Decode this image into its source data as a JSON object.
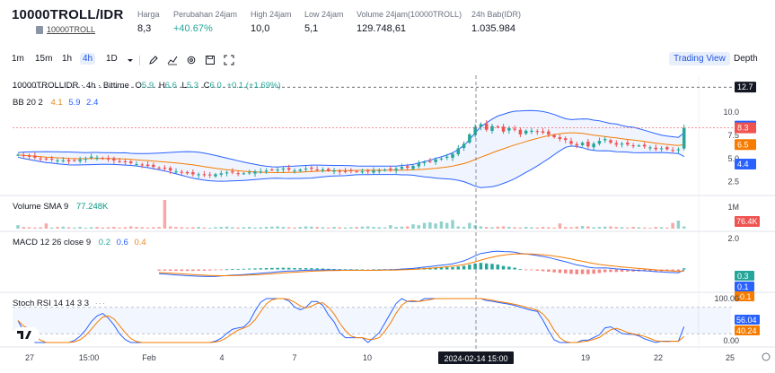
{
  "header": {
    "pair": "10000TROLL/IDR",
    "link": "10000TROLL",
    "stats": [
      {
        "label": "Harga",
        "value": "8,3",
        "trend": "neutral"
      },
      {
        "label": "Perubahan 24jam",
        "value": "+40.67%",
        "trend": "up"
      },
      {
        "label": "High 24jam",
        "value": "10,0",
        "trend": "neutral"
      },
      {
        "label": "Low 24jam",
        "value": "5,1",
        "trend": "neutral"
      },
      {
        "label": "Volume 24jam(10000TROLL)",
        "value": "129.748,61",
        "trend": "neutral"
      },
      {
        "label": "24h Bab(IDR)",
        "value": "1.035.984",
        "trend": "neutral"
      }
    ]
  },
  "toolbar": {
    "timeframes": [
      "1m",
      "15m",
      "1h",
      "4h",
      "1D"
    ],
    "active_timeframe": "4h",
    "icons": [
      "chevron-down-icon",
      "draw-icon",
      "indicator-icon",
      "settings-icon",
      "save-icon",
      "fullscreen-icon"
    ],
    "views": [
      "Trading View",
      "Depth"
    ],
    "active_view": "Trading View"
  },
  "legend": {
    "symbol": "10000TROLLIDR · 4h · Bittime",
    "o_label": "O",
    "o_value": "5.9",
    "h_label": "H",
    "h_value": "6.6",
    "l_label": "L",
    "l_value": "5.3",
    "c_label": "C",
    "c_value": "6.0",
    "change": "+0.1 (+1.69%)",
    "bb_name": "BB 20 2",
    "bb_v1": "4.1",
    "bb_v2": "5.9",
    "bb_v3": "2.4",
    "vol_name": "Volume SMA 9",
    "vol_value": "77.248K",
    "macd_name": "MACD 12 26 close 9",
    "macd_v1": "0.2",
    "macd_v2": "0.6",
    "macd_v3": "0.4",
    "stoch_name": "Stoch RSI 14 14 3 3"
  },
  "price_axis": {
    "ticks": [
      "10.0",
      "7.5",
      "5.0",
      "2.5"
    ],
    "badges": [
      {
        "label": "12.7",
        "color": "#131722"
      },
      {
        "label": "8.5",
        "color": "#2962ff"
      },
      {
        "label": "8.3",
        "color": "#ef5350"
      },
      {
        "label": "6.5",
        "color": "#f57c00"
      },
      {
        "label": "4.4",
        "color": "#2962ff"
      }
    ]
  },
  "volume_axis": {
    "ticks": [
      "1M"
    ],
    "badge": "76.4K"
  },
  "macd_axis": {
    "ticks": [
      "2.0"
    ],
    "badges": [
      {
        "label": "0.3",
        "color": "#26a69a"
      },
      {
        "label": "0.1",
        "color": "#2962ff"
      },
      {
        "label": "-0.1",
        "color": "#f57c00"
      }
    ]
  },
  "stoch_axis": {
    "ticks": [
      "100.00",
      "0.00"
    ],
    "badges": [
      {
        "label": "56.04",
        "color": "#2962ff"
      },
      {
        "label": "40.24",
        "color": "#f57c00"
      }
    ]
  },
  "time_axis": {
    "ticks": [
      "27",
      "15:00",
      "Feb",
      "4",
      "7",
      "10",
      "19",
      "22",
      "25"
    ],
    "crosshair_label": "2024-02-14  15:00"
  },
  "colors": {
    "up": "#26a69a",
    "down": "#ef5350",
    "bb_basis": "#f57c00",
    "bb_band": "#2962ff",
    "macd": "#2962ff",
    "signal": "#f57c00",
    "stoch_k": "#2962ff",
    "stoch_d": "#f57c00"
  },
  "chart_data": {
    "type": "candlestick",
    "title": "10000TROLLIDR · 4h · Bittime",
    "ylim": [
      1.5,
      13.2
    ],
    "closes": [
      5.4,
      5.3,
      5.2,
      5.1,
      5.0,
      4.9,
      4.9,
      4.8,
      4.8,
      4.7,
      4.8,
      4.9,
      5.0,
      5.2,
      5.1,
      5.0,
      4.9,
      4.8,
      4.7,
      4.6,
      4.5,
      4.4,
      4.3,
      4.2,
      4.1,
      4.0,
      3.9,
      3.7,
      3.6,
      3.5,
      3.4,
      3.3,
      3.3,
      3.2,
      3.2,
      3.3,
      3.4,
      3.5,
      3.5,
      3.4,
      3.4,
      3.5,
      3.6,
      3.6,
      3.7,
      3.8,
      3.8,
      3.9,
      3.8,
      3.7,
      3.8,
      3.9,
      3.9,
      3.8,
      3.8,
      3.7,
      3.7,
      3.6,
      3.6,
      3.7,
      3.6,
      3.6,
      3.6,
      3.7,
      3.7,
      3.8,
      3.8,
      3.9,
      4.1,
      4.0,
      4.2,
      4.5,
      4.6,
      4.7,
      4.9,
      5.0,
      5.2,
      5.5,
      6.1,
      6.6,
      7.6,
      8.4,
      8.7,
      8.1,
      8.5,
      8.4,
      7.9,
      8.3,
      8.1,
      7.6,
      8.0,
      8.0,
      7.9,
      7.8,
      7.6,
      7.3,
      7.1,
      7.0,
      6.6,
      6.4,
      6.7,
      6.3,
      6.6,
      6.9,
      7.1,
      6.7,
      6.5,
      6.6,
      6.5,
      6.4,
      6.4,
      6.3,
      6.2,
      6.0,
      6.1,
      6.0,
      5.9,
      6.0,
      8.3
    ],
    "series": [
      {
        "name": "Volume SMA 9",
        "values": [
          120,
          60,
          50,
          40,
          50,
          180,
          40,
          60,
          70,
          50,
          40,
          60,
          30,
          50,
          60,
          40,
          50,
          60,
          40,
          50,
          80,
          60,
          50,
          40,
          50,
          60,
          1000,
          80,
          60,
          50,
          40,
          50,
          60,
          40,
          30,
          50,
          60,
          70,
          50,
          40,
          50,
          60,
          40,
          50,
          60,
          70,
          80,
          60,
          50,
          40,
          60,
          80,
          70,
          60,
          50,
          40,
          60,
          50,
          40,
          50,
          60,
          70,
          80,
          60,
          50,
          40,
          120,
          60,
          70,
          80,
          150,
          120,
          200,
          220,
          180,
          250,
          200,
          300,
          80,
          60,
          200,
          120,
          80,
          60,
          50,
          70,
          80,
          60,
          50,
          40,
          60,
          50,
          40,
          60,
          50,
          40,
          180,
          60,
          50,
          70,
          90,
          80,
          50,
          60,
          70,
          80,
          60,
          50,
          40,
          60,
          50,
          40,
          30,
          60,
          50,
          40,
          200,
          280,
          76
        ]
      }
    ]
  }
}
